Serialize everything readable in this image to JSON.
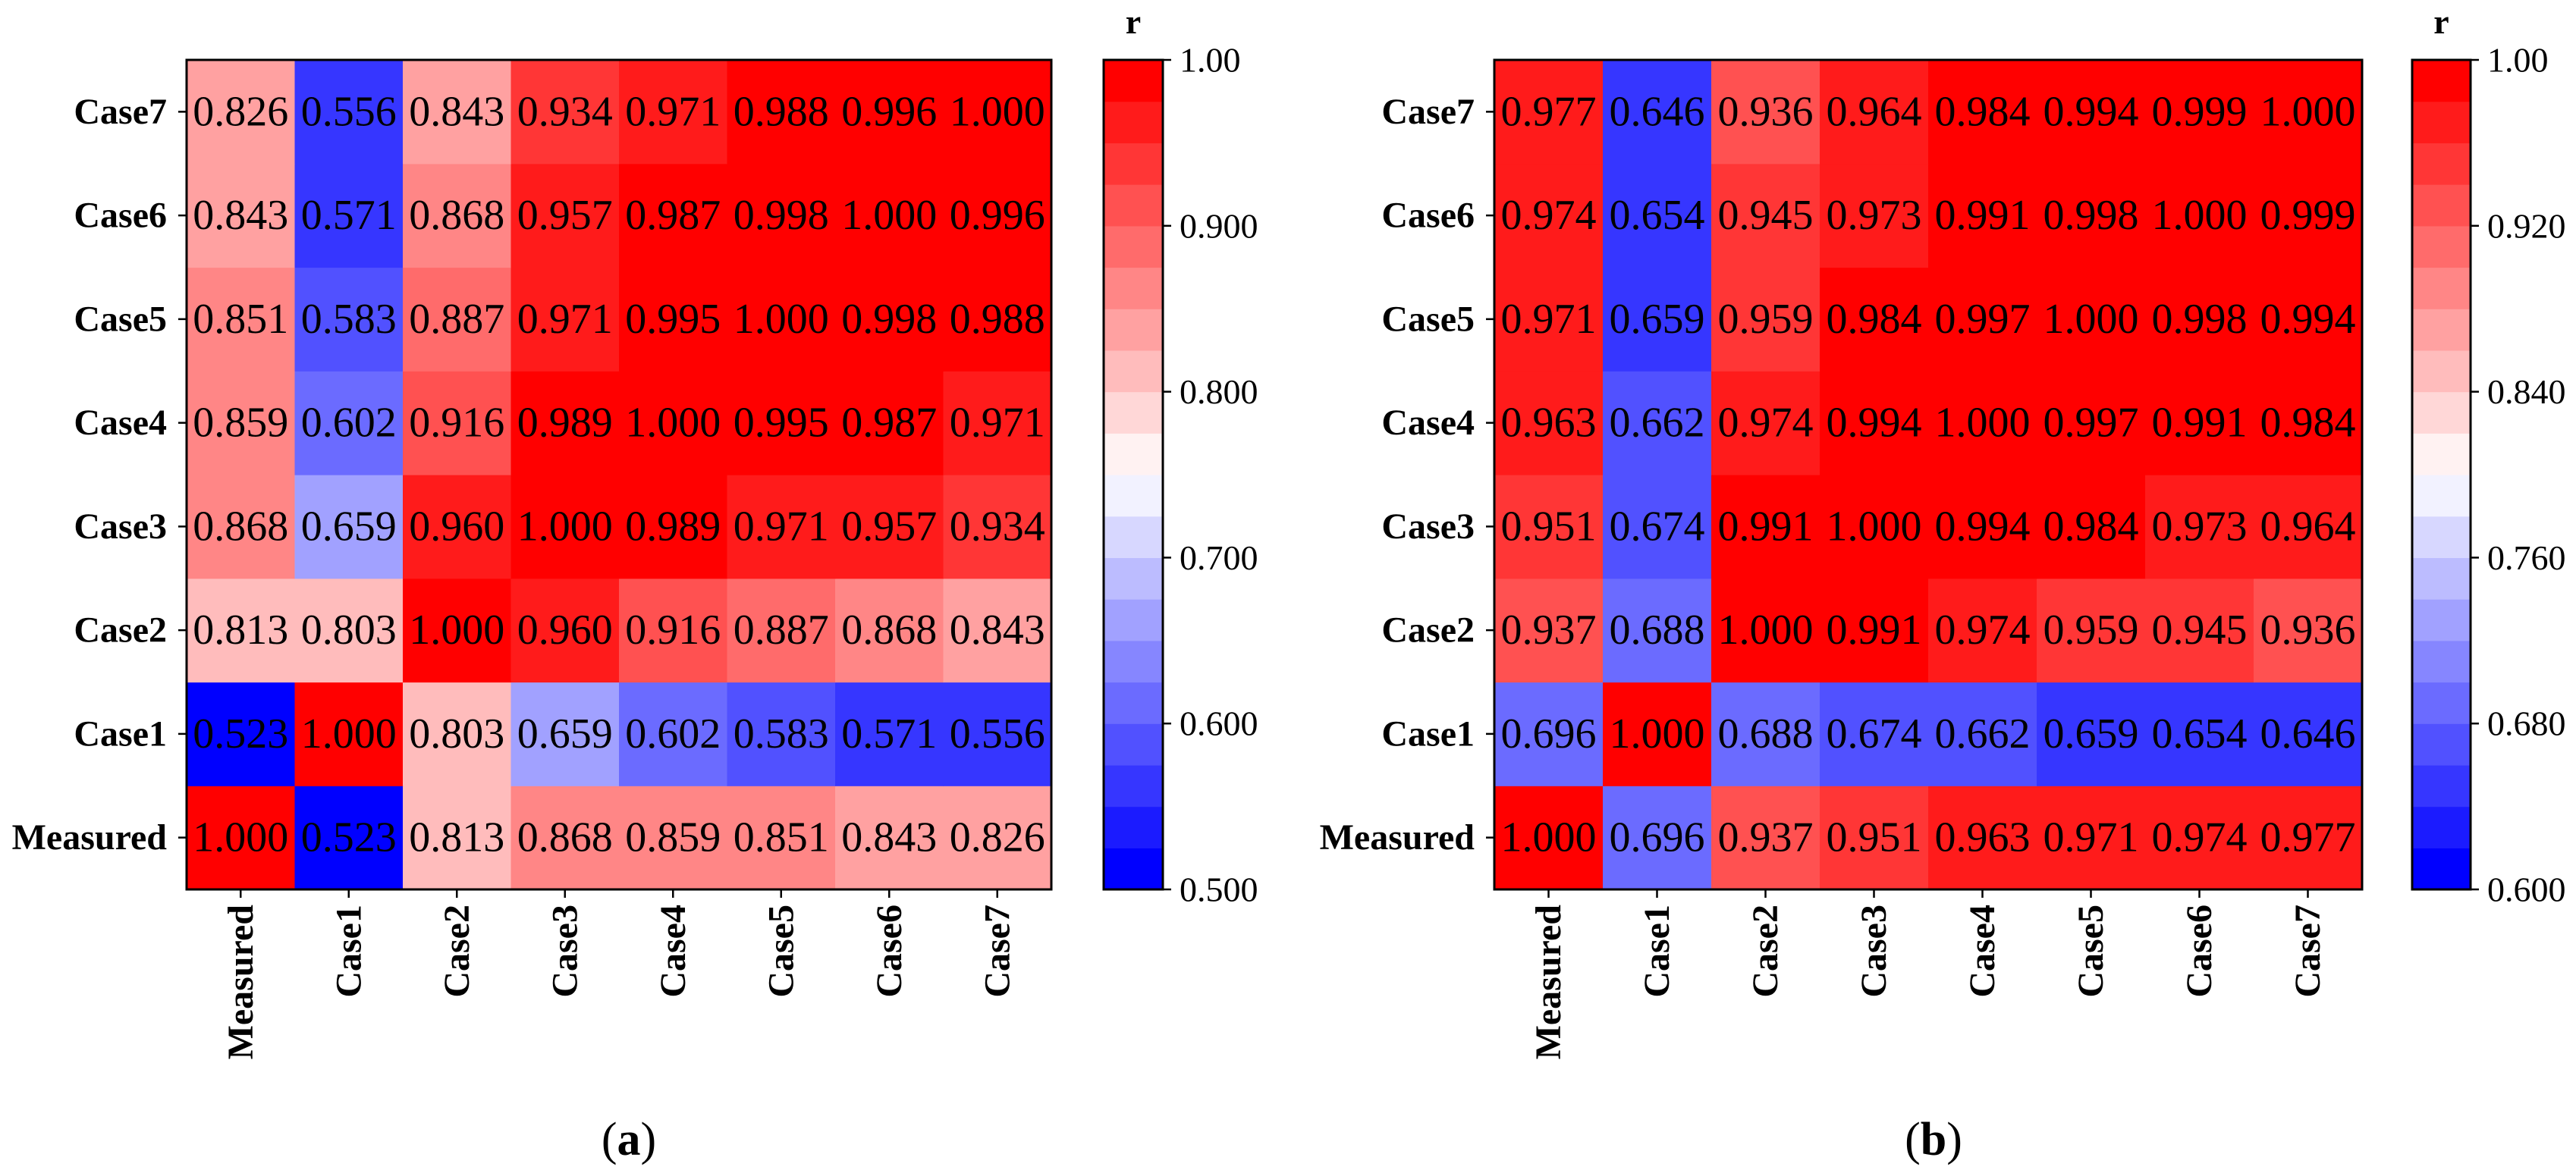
{
  "chart_data": [
    {
      "type": "heatmap",
      "caption": "(a)",
      "x_categories": [
        "Measured",
        "Case1",
        "Case2",
        "Case3",
        "Case4",
        "Case5",
        "Case6",
        "Case7"
      ],
      "y_categories": [
        "Measured",
        "Case1",
        "Case2",
        "Case3",
        "Case4",
        "Case5",
        "Case6",
        "Case7"
      ],
      "values": [
        [
          1.0,
          0.523,
          0.813,
          0.868,
          0.859,
          0.851,
          0.843,
          0.826
        ],
        [
          0.523,
          1.0,
          0.803,
          0.659,
          0.602,
          0.583,
          0.571,
          0.556
        ],
        [
          0.813,
          0.803,
          1.0,
          0.96,
          0.916,
          0.887,
          0.868,
          0.843
        ],
        [
          0.868,
          0.659,
          0.96,
          1.0,
          0.989,
          0.971,
          0.957,
          0.934
        ],
        [
          0.859,
          0.602,
          0.916,
          0.989,
          1.0,
          0.995,
          0.987,
          0.971
        ],
        [
          0.851,
          0.583,
          0.887,
          0.971,
          0.995,
          1.0,
          0.998,
          0.988
        ],
        [
          0.843,
          0.571,
          0.868,
          0.957,
          0.987,
          0.998,
          1.0,
          0.996
        ],
        [
          0.826,
          0.556,
          0.843,
          0.934,
          0.971,
          0.988,
          0.996,
          1.0
        ]
      ],
      "value_text_colors": [
        [
          "#fff",
          "#fff",
          "#000",
          "#000",
          "#000",
          "#000",
          "#000",
          "#000"
        ],
        [
          "#fff",
          "#fff",
          "#000",
          "#000",
          "#fff",
          "#fff",
          "#fff",
          "#fff"
        ],
        [
          "#000",
          "#000",
          "#fff",
          "#fff",
          "#000",
          "#000",
          "#000",
          "#000"
        ],
        [
          "#000",
          "#fff",
          "#fff",
          "#fff",
          "#fff",
          "#fff",
          "#fff",
          "#fff"
        ],
        [
          "#000",
          "#fff",
          "#000",
          "#fff",
          "#fff",
          "#fff",
          "#fff",
          "#fff"
        ],
        [
          "#000",
          "#fff",
          "#000",
          "#fff",
          "#fff",
          "#fff",
          "#fff",
          "#fff"
        ],
        [
          "#000",
          "#fff",
          "#000",
          "#fff",
          "#fff",
          "#fff",
          "#fff",
          "#fff"
        ],
        [
          "#000",
          "#fff",
          "#000",
          "#fff",
          "#fff",
          "#fff",
          "#fff",
          "#fff"
        ]
      ],
      "colorbar": {
        "label": "r",
        "vmin": 0.5,
        "vmax": 1.0,
        "levels": 20,
        "ticks": [
          1.0,
          0.9,
          0.8,
          0.7,
          0.6,
          0.5
        ],
        "tick_labels": [
          "1.00",
          "0.900",
          "0.800",
          "0.700",
          "0.600",
          "0.500"
        ]
      },
      "colormap": {
        "low": "#0000ff",
        "mid": "#ffffff",
        "high": "#ff0000"
      }
    },
    {
      "type": "heatmap",
      "caption": "(b)",
      "x_categories": [
        "Measured",
        "Case1",
        "Case2",
        "Case3",
        "Case4",
        "Case5",
        "Case6",
        "Case7"
      ],
      "y_categories": [
        "Measured",
        "Case1",
        "Case2",
        "Case3",
        "Case4",
        "Case5",
        "Case6",
        "Case7"
      ],
      "values": [
        [
          1.0,
          0.696,
          0.937,
          0.951,
          0.963,
          0.971,
          0.974,
          0.977
        ],
        [
          0.696,
          1.0,
          0.688,
          0.674,
          0.662,
          0.659,
          0.654,
          0.646
        ],
        [
          0.937,
          0.688,
          1.0,
          0.991,
          0.974,
          0.959,
          0.945,
          0.936
        ],
        [
          0.951,
          0.674,
          0.991,
          1.0,
          0.994,
          0.984,
          0.973,
          0.964
        ],
        [
          0.963,
          0.662,
          0.974,
          0.994,
          1.0,
          0.997,
          0.991,
          0.984
        ],
        [
          0.971,
          0.659,
          0.959,
          0.984,
          0.997,
          1.0,
          0.998,
          0.994
        ],
        [
          0.974,
          0.654,
          0.945,
          0.973,
          0.991,
          0.998,
          1.0,
          0.999
        ],
        [
          0.977,
          0.646,
          0.936,
          0.964,
          0.984,
          0.994,
          0.999,
          1.0
        ]
      ],
      "value_text_colors": [
        [
          "#fff",
          "#000",
          "#fff",
          "#fff",
          "#fff",
          "#fff",
          "#fff",
          "#fff"
        ],
        [
          "#000",
          "#fff",
          "#fff",
          "#fff",
          "#fff",
          "#fff",
          "#fff",
          "#fff"
        ],
        [
          "#fff",
          "#fff",
          "#fff",
          "#fff",
          "#fff",
          "#fff",
          "#fff",
          "#fff"
        ],
        [
          "#fff",
          "#fff",
          "#fff",
          "#fff",
          "#fff",
          "#fff",
          "#fff",
          "#fff"
        ],
        [
          "#fff",
          "#fff",
          "#fff",
          "#fff",
          "#000",
          "#fff",
          "#fff",
          "#fff"
        ],
        [
          "#fff",
          "#fff",
          "#fff",
          "#fff",
          "#fff",
          "#fff",
          "#fff",
          "#fff"
        ],
        [
          "#fff",
          "#fff",
          "#fff",
          "#fff",
          "#fff",
          "#fff",
          "#fff",
          "#fff"
        ],
        [
          "#fff",
          "#fff",
          "#fff",
          "#fff",
          "#fff",
          "#fff",
          "#fff",
          "#fff"
        ]
      ],
      "colorbar": {
        "label": "r",
        "vmin": 0.6,
        "vmax": 1.0,
        "levels": 20,
        "ticks": [
          1.0,
          0.92,
          0.84,
          0.76,
          0.68,
          0.6
        ],
        "tick_labels": [
          "1.00",
          "0.920",
          "0.840",
          "0.760",
          "0.680",
          "0.600"
        ]
      },
      "colormap": {
        "low": "#0000ff",
        "mid": "#ffffff",
        "high": "#ff0000"
      }
    }
  ]
}
